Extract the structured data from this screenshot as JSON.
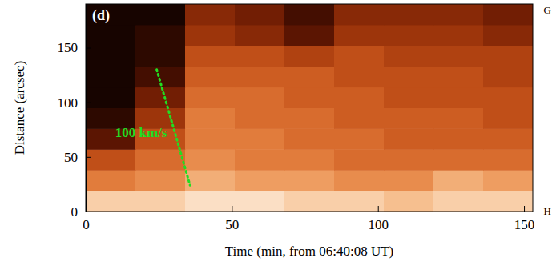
{
  "chart_data": {
    "type": "heatmap",
    "title": "(d)",
    "x_label": "Time (min, from 06:40:08 UT)",
    "y_label": "Distance (arcsec)",
    "xlim": [
      0,
      153
    ],
    "ylim": [
      0,
      190
    ],
    "xticks": [
      0,
      50,
      100,
      150
    ],
    "yticks": [
      0,
      50,
      100,
      150
    ],
    "x_edges": [
      0,
      17,
      34,
      51,
      68,
      85,
      102,
      119,
      136,
      153
    ],
    "y_edges": [
      0,
      19,
      38,
      57,
      76,
      95,
      114,
      133,
      152,
      171,
      190
    ],
    "cells": [
      [
        0.85,
        0.85,
        0.9,
        0.9,
        0.85,
        0.85,
        0.8,
        0.85,
        0.85
      ],
      [
        0.6,
        0.65,
        0.75,
        0.7,
        0.7,
        0.65,
        0.65,
        0.75,
        0.7
      ],
      [
        0.45,
        0.55,
        0.65,
        0.6,
        0.6,
        0.55,
        0.55,
        0.55,
        0.55
      ],
      [
        0.2,
        0.45,
        0.6,
        0.6,
        0.55,
        0.55,
        0.5,
        0.5,
        0.5
      ],
      [
        0.1,
        0.35,
        0.6,
        0.55,
        0.55,
        0.5,
        0.5,
        0.5,
        0.45
      ],
      [
        0.05,
        0.25,
        0.55,
        0.55,
        0.5,
        0.5,
        0.45,
        0.45,
        0.45
      ],
      [
        0.05,
        0.15,
        0.5,
        0.5,
        0.5,
        0.45,
        0.45,
        0.45,
        0.4
      ],
      [
        0.05,
        0.1,
        0.45,
        0.45,
        0.4,
        0.45,
        0.4,
        0.4,
        0.4
      ],
      [
        0.05,
        0.1,
        0.35,
        0.3,
        0.2,
        0.35,
        0.35,
        0.35,
        0.3
      ],
      [
        0.05,
        0.05,
        0.3,
        0.25,
        0.15,
        0.3,
        0.3,
        0.3,
        0.25
      ]
    ],
    "annotations": [
      {
        "text": "100 km/s",
        "x": [
          24.3,
          35.7
        ],
        "y": [
          130,
          24
        ],
        "color": "#22dd22",
        "line_style": "dotted"
      }
    ],
    "side_labels": [
      "G",
      "H"
    ]
  }
}
